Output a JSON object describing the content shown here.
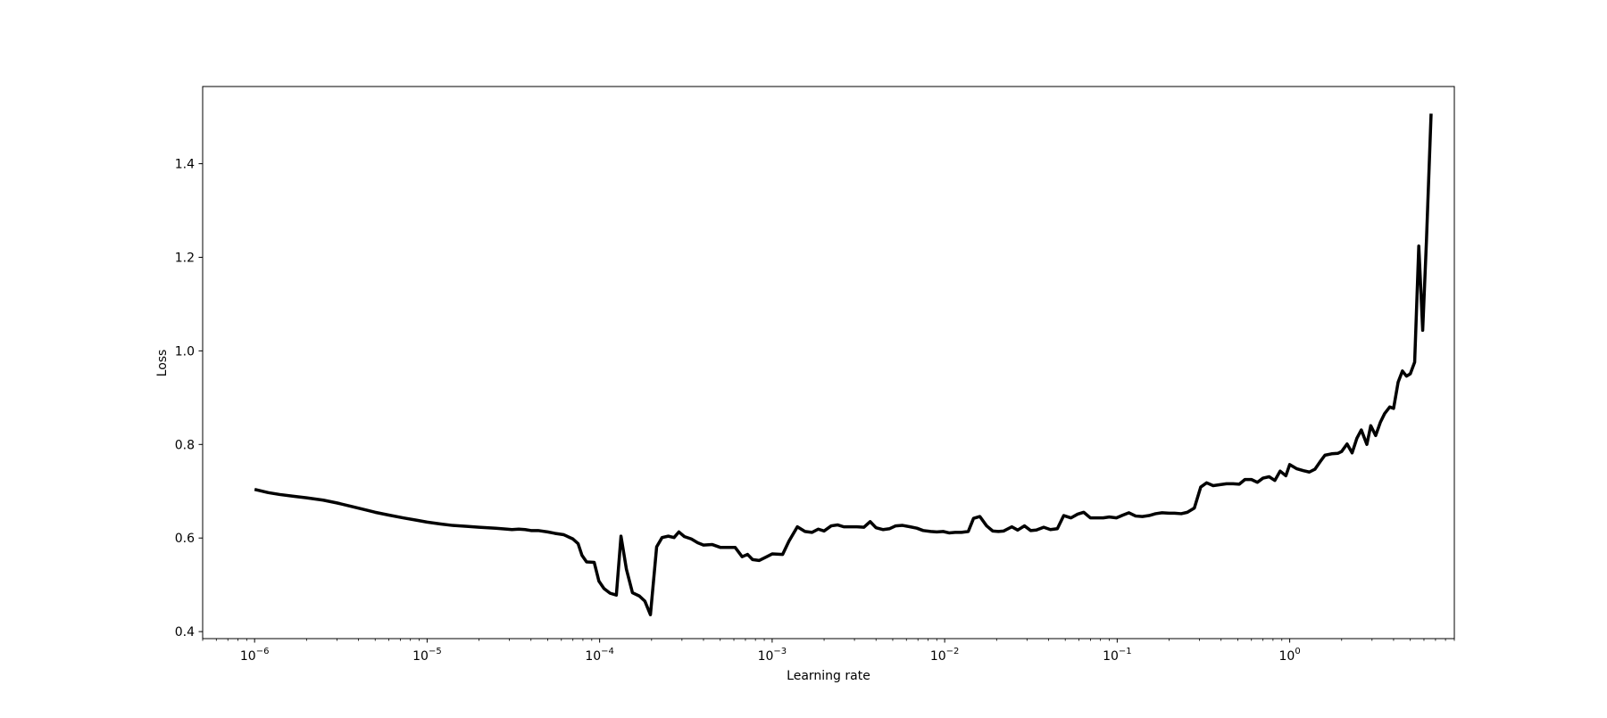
{
  "chart_data": {
    "type": "line",
    "title": "",
    "xlabel": "Learning rate",
    "ylabel": "Loss",
    "xscale": "log",
    "xlim": [
      5e-07,
      9.0
    ],
    "ylim": [
      0.385,
      1.565
    ],
    "grid": false,
    "x_ticks": [
      {
        "value": 1e-06,
        "base": "10",
        "exp": "−6"
      },
      {
        "value": 1e-05,
        "base": "10",
        "exp": "−5"
      },
      {
        "value": 0.0001,
        "base": "10",
        "exp": "−4"
      },
      {
        "value": 0.001,
        "base": "10",
        "exp": "−3"
      },
      {
        "value": 0.01,
        "base": "10",
        "exp": "−2"
      },
      {
        "value": 0.1,
        "base": "10",
        "exp": "−1"
      },
      {
        "value": 1,
        "base": "10",
        "exp": "0"
      }
    ],
    "y_ticks": [
      {
        "value": 0.4,
        "label": "0.4"
      },
      {
        "value": 0.6,
        "label": "0.6"
      },
      {
        "value": 0.8,
        "label": "0.8"
      },
      {
        "value": 1.0,
        "label": "1.0"
      },
      {
        "value": 1.2,
        "label": "1.2"
      },
      {
        "value": 1.4,
        "label": "1.4"
      }
    ],
    "series": [
      {
        "color": "#000000",
        "points": [
          [
            1e-06,
            0.704
          ],
          [
            1.2e-06,
            0.697
          ],
          [
            1.4e-06,
            0.693
          ],
          [
            1.7e-06,
            0.689
          ],
          [
            2e-06,
            0.686
          ],
          [
            2.5e-06,
            0.681
          ],
          [
            3e-06,
            0.675
          ],
          [
            3.6e-06,
            0.668
          ],
          [
            4.3e-06,
            0.661
          ],
          [
            5e-06,
            0.655
          ],
          [
            6e-06,
            0.649
          ],
          [
            7.3e-06,
            0.643
          ],
          [
            8.7e-06,
            0.638
          ],
          [
            1e-05,
            0.634
          ],
          [
            1.2e-05,
            0.63
          ],
          [
            1.4e-05,
            0.627
          ],
          [
            1.7e-05,
            0.625
          ],
          [
            2e-05,
            0.623
          ],
          [
            2.5e-05,
            0.621
          ],
          [
            2.9e-05,
            0.619
          ],
          [
            3.1e-05,
            0.618
          ],
          [
            3.4e-05,
            0.619
          ],
          [
            3.7e-05,
            0.618
          ],
          [
            4e-05,
            0.616
          ],
          [
            4.4e-05,
            0.616
          ],
          [
            5e-05,
            0.613
          ],
          [
            5.5e-05,
            0.61
          ],
          [
            6.2e-05,
            0.607
          ],
          [
            7e-05,
            0.598
          ],
          [
            7.5e-05,
            0.588
          ],
          [
            7.9e-05,
            0.563
          ],
          [
            8.4e-05,
            0.549
          ],
          [
            9.3e-05,
            0.548
          ],
          [
            9.9e-05,
            0.508
          ],
          [
            0.000106,
            0.492
          ],
          [
            0.000115,
            0.482
          ],
          [
            0.000125,
            0.478
          ],
          [
            0.000133,
            0.604
          ],
          [
            0.000143,
            0.533
          ],
          [
            0.000155,
            0.483
          ],
          [
            0.00017,
            0.476
          ],
          [
            0.000183,
            0.465
          ],
          [
            0.000197,
            0.436
          ],
          [
            0.000214,
            0.581
          ],
          [
            0.00023,
            0.601
          ],
          [
            0.00025,
            0.604
          ],
          [
            0.00027,
            0.601
          ],
          [
            0.000288,
            0.613
          ],
          [
            0.00031,
            0.603
          ],
          [
            0.00034,
            0.598
          ],
          [
            0.00037,
            0.59
          ],
          [
            0.0004,
            0.585
          ],
          [
            0.00045,
            0.586
          ],
          [
            0.0005,
            0.58
          ],
          [
            0.00055,
            0.58
          ],
          [
            0.00061,
            0.58
          ],
          [
            0.00067,
            0.56
          ],
          [
            0.00072,
            0.565
          ],
          [
            0.00077,
            0.554
          ],
          [
            0.00084,
            0.552
          ],
          [
            0.00093,
            0.56
          ],
          [
            0.001,
            0.566
          ],
          [
            0.00115,
            0.565
          ],
          [
            0.00125,
            0.593
          ],
          [
            0.0014,
            0.624
          ],
          [
            0.00155,
            0.614
          ],
          [
            0.0017,
            0.612
          ],
          [
            0.00185,
            0.619
          ],
          [
            0.002,
            0.615
          ],
          [
            0.0022,
            0.626
          ],
          [
            0.0024,
            0.628
          ],
          [
            0.0026,
            0.624
          ],
          [
            0.0028,
            0.624
          ],
          [
            0.0031,
            0.624
          ],
          [
            0.0034,
            0.623
          ],
          [
            0.0037,
            0.635
          ],
          [
            0.004,
            0.622
          ],
          [
            0.0044,
            0.618
          ],
          [
            0.0048,
            0.62
          ],
          [
            0.0052,
            0.626
          ],
          [
            0.0057,
            0.627
          ],
          [
            0.0063,
            0.624
          ],
          [
            0.0069,
            0.621
          ],
          [
            0.0075,
            0.616
          ],
          [
            0.0083,
            0.614
          ],
          [
            0.009,
            0.613
          ],
          [
            0.0098,
            0.614
          ],
          [
            0.0106,
            0.611
          ],
          [
            0.0115,
            0.612
          ],
          [
            0.0125,
            0.612
          ],
          [
            0.0137,
            0.614
          ],
          [
            0.0147,
            0.642
          ],
          [
            0.016,
            0.646
          ],
          [
            0.0175,
            0.626
          ],
          [
            0.019,
            0.615
          ],
          [
            0.0205,
            0.614
          ],
          [
            0.022,
            0.615
          ],
          [
            0.0245,
            0.624
          ],
          [
            0.0265,
            0.617
          ],
          [
            0.029,
            0.626
          ],
          [
            0.0315,
            0.616
          ],
          [
            0.034,
            0.617
          ],
          [
            0.0375,
            0.623
          ],
          [
            0.041,
            0.618
          ],
          [
            0.045,
            0.62
          ],
          [
            0.049,
            0.648
          ],
          [
            0.054,
            0.643
          ],
          [
            0.059,
            0.651
          ],
          [
            0.064,
            0.655
          ],
          [
            0.07,
            0.643
          ],
          [
            0.076,
            0.643
          ],
          [
            0.083,
            0.643
          ],
          [
            0.09,
            0.645
          ],
          [
            0.099,
            0.643
          ],
          [
            0.108,
            0.649
          ],
          [
            0.117,
            0.654
          ],
          [
            0.128,
            0.647
          ],
          [
            0.14,
            0.646
          ],
          [
            0.153,
            0.648
          ],
          [
            0.167,
            0.652
          ],
          [
            0.182,
            0.654
          ],
          [
            0.2,
            0.653
          ],
          [
            0.215,
            0.653
          ],
          [
            0.235,
            0.652
          ],
          [
            0.255,
            0.655
          ],
          [
            0.28,
            0.664
          ],
          [
            0.305,
            0.709
          ],
          [
            0.33,
            0.718
          ],
          [
            0.36,
            0.712
          ],
          [
            0.395,
            0.714
          ],
          [
            0.43,
            0.716
          ],
          [
            0.47,
            0.716
          ],
          [
            0.51,
            0.715
          ],
          [
            0.55,
            0.725
          ],
          [
            0.6,
            0.725
          ],
          [
            0.65,
            0.719
          ],
          [
            0.7,
            0.728
          ],
          [
            0.76,
            0.731
          ],
          [
            0.82,
            0.723
          ],
          [
            0.88,
            0.743
          ],
          [
            0.95,
            0.733
          ],
          [
            1.0,
            0.757
          ],
          [
            1.1,
            0.748
          ],
          [
            1.2,
            0.744
          ],
          [
            1.3,
            0.741
          ],
          [
            1.4,
            0.747
          ],
          [
            1.5,
            0.763
          ],
          [
            1.6,
            0.777
          ],
          [
            1.75,
            0.78
          ],
          [
            1.9,
            0.781
          ],
          [
            2.0,
            0.785
          ],
          [
            2.15,
            0.801
          ],
          [
            2.3,
            0.782
          ],
          [
            2.45,
            0.813
          ],
          [
            2.6,
            0.831
          ],
          [
            2.8,
            0.8
          ],
          [
            2.95,
            0.84
          ],
          [
            3.15,
            0.819
          ],
          [
            3.35,
            0.847
          ],
          [
            3.55,
            0.866
          ],
          [
            3.8,
            0.88
          ],
          [
            4.0,
            0.877
          ],
          [
            4.25,
            0.933
          ],
          [
            4.5,
            0.957
          ],
          [
            4.75,
            0.946
          ],
          [
            5.0,
            0.951
          ],
          [
            5.3,
            0.976
          ],
          [
            5.6,
            1.224
          ],
          [
            5.9,
            1.044
          ],
          [
            6.2,
            1.233
          ],
          [
            6.6,
            1.507
          ]
        ]
      }
    ]
  }
}
